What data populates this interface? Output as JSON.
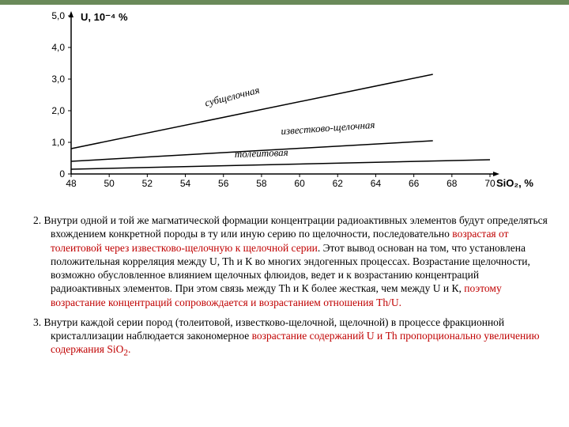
{
  "chart": {
    "type": "line",
    "y_axis_label": "U, 10⁻⁴ %",
    "x_axis_label": "SiO₂, %",
    "xlim": [
      48,
      70
    ],
    "ylim": [
      0,
      5.0
    ],
    "x_ticks": [
      48,
      50,
      52,
      54,
      56,
      58,
      60,
      62,
      64,
      66,
      68,
      70
    ],
    "y_ticks": [
      0,
      1.0,
      2.0,
      3.0,
      4.0,
      5.0
    ],
    "x_tick_labels": [
      "48",
      "50",
      "52",
      "54",
      "56",
      "58",
      "60",
      "62",
      "64",
      "66",
      "68",
      "70"
    ],
    "y_tick_labels": [
      "0",
      "1,0",
      "2,0",
      "3,0",
      "4,0",
      "5,0"
    ],
    "axis_color": "#000000",
    "line_width": 1.5,
    "background_color": "#ffffff",
    "series": [
      {
        "name": "субщелочная",
        "label": "субщелочная",
        "points": [
          [
            48,
            0.8
          ],
          [
            67,
            3.15
          ]
        ],
        "color": "#000000"
      },
      {
        "name": "известково-щелочная",
        "label": "известково-щелочная",
        "points": [
          [
            48,
            0.4
          ],
          [
            67,
            1.05
          ]
        ],
        "color": "#000000"
      },
      {
        "name": "толеитовая",
        "label": "толеитовая",
        "points": [
          [
            48,
            0.15
          ],
          [
            70,
            0.45
          ]
        ],
        "color": "#000000"
      }
    ],
    "series_label_positions": {
      "субщелочная": {
        "x": 56.5,
        "y": 2.35,
        "rotate": -14
      },
      "известково-щелочная": {
        "x": 61.5,
        "y": 1.35,
        "rotate": -4
      },
      "толеитовая": {
        "x": 58,
        "y": 0.55,
        "rotate": -2
      }
    }
  },
  "paragraphs": {
    "p2": {
      "number": "2.",
      "runs": [
        {
          "t": " Внутри одной и той же магматической формации концентрации радиоактивных элементов будут определяться вхождением конкретной породы в ту или иную серию по щелочности, последовательно ",
          "red": false
        },
        {
          "t": "возрастая от толеитовой через известково-щелочную к щелочной серии",
          "red": true
        },
        {
          "t": ". Этот вывод основан на том, что установлена положительная корреляция между U, Th и К во многих эндогенных процессах. Возрастание щелочности, возможно обусловленное влиянием щелочных флюидов, ведет и к возрастанию концентраций радиоактивных элементов. При этом связь между Th и К более жесткая, чем между U и К, ",
          "red": false
        },
        {
          "t": "поэтому возрастание концентраций сопровождается и возрастанием отношения Th/U.",
          "red": true
        }
      ]
    },
    "p3": {
      "number": "3.",
      "runs": [
        {
          "t": " Внутри каждой серии пород (толеитовой, известково-щелочной, щелочной) в процессе фракционной кристаллизации наблюдается закономерное ",
          "red": false
        },
        {
          "t": "возрастание содержаний U и Th пропорционально увеличению содержания SiO",
          "red": true
        },
        {
          "t": "2",
          "red": true,
          "sub": true
        },
        {
          "t": ".",
          "red": true
        }
      ]
    }
  }
}
